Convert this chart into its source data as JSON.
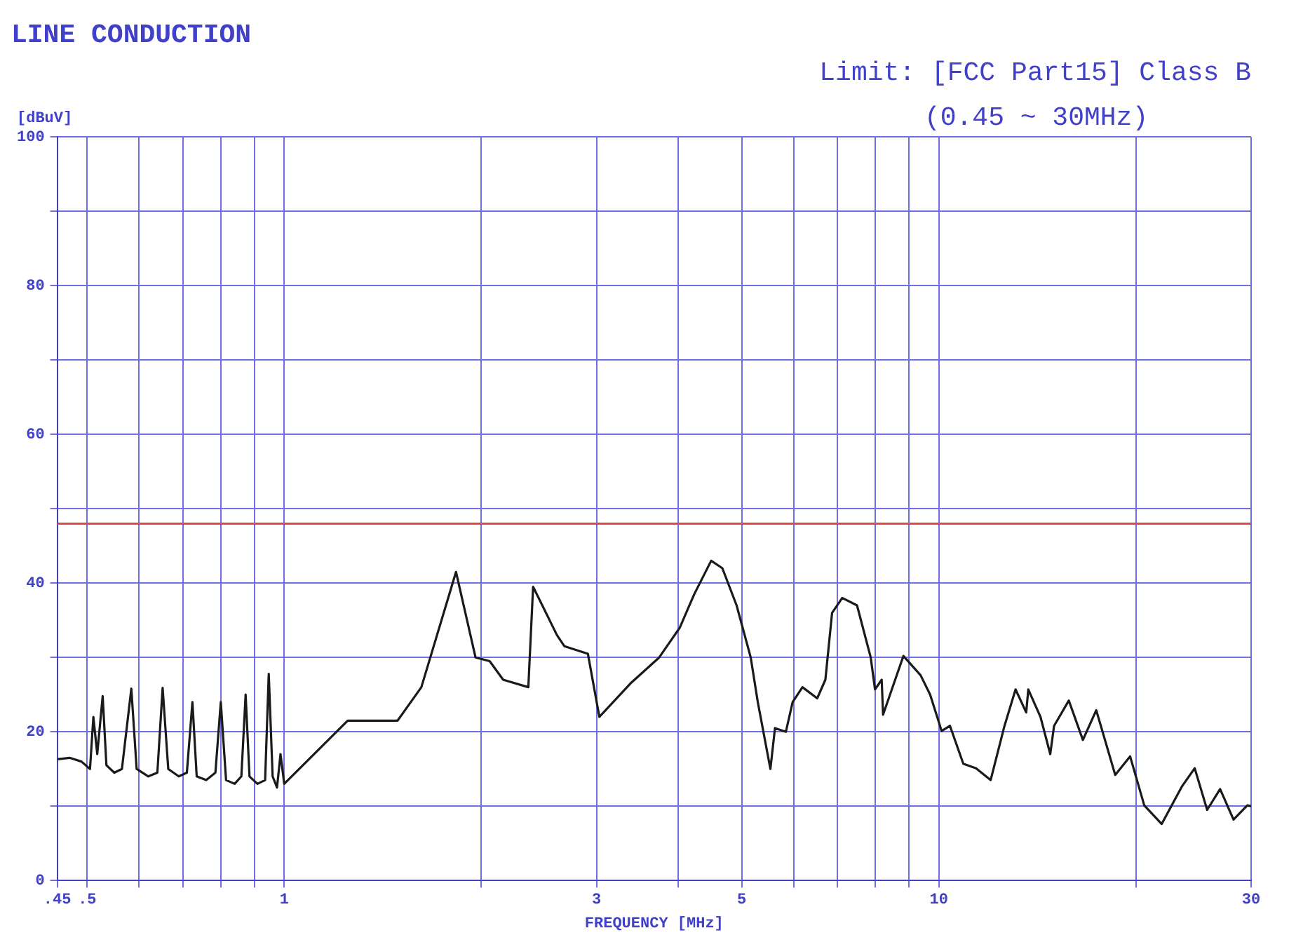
{
  "chart_data": {
    "type": "line",
    "title": "LINE CONDUCTION",
    "subtitle": "Limit: [FCC Part15] Class B",
    "annotations": [
      "(0.45 ~ 30MHz)"
    ],
    "xlabel": "FREQUENCY [MHz]",
    "ylabel": "[dBuV]",
    "log": "x",
    "xlim": [
      0.45,
      30
    ],
    "xticks": [
      {
        "value": 0.45,
        "label": ".45"
      },
      {
        "value": 0.5,
        "label": ".5"
      },
      {
        "value": 0.6,
        "label": null
      },
      {
        "value": 0.7,
        "label": null
      },
      {
        "value": 0.8,
        "label": null
      },
      {
        "value": 0.9,
        "label": null
      },
      1,
      {
        "value": 2,
        "label": null
      },
      3,
      {
        "value": 4,
        "label": null
      },
      5,
      {
        "value": 6,
        "label": null
      },
      {
        "value": 7,
        "label": null
      },
      {
        "value": 8,
        "label": null
      },
      {
        "value": 9,
        "label": null
      },
      10,
      {
        "value": 20,
        "label": null
      },
      30
    ],
    "ylim": [
      0,
      100
    ],
    "yticks": [
      0,
      {
        "value": 10,
        "label": null
      },
      20,
      {
        "value": 30,
        "label": null
      },
      40,
      {
        "value": 50,
        "label": null
      },
      60,
      {
        "value": 70,
        "label": null
      },
      80,
      {
        "value": 90,
        "label": null
      },
      100
    ],
    "grid": true,
    "ref_lines": [
      {
        "axis": "y",
        "value": 48,
        "color": "#e04848"
      }
    ],
    "series": [
      {
        "color": "#1a1a1a",
        "x": [
          0.45,
          0.47,
          0.49,
          0.505,
          0.511,
          0.518,
          0.528,
          0.535,
          0.55,
          0.565,
          0.584,
          0.595,
          0.62,
          0.64,
          0.652,
          0.665,
          0.69,
          0.71,
          0.724,
          0.735,
          0.76,
          0.785,
          0.8,
          0.815,
          0.84,
          0.86,
          0.873,
          0.885,
          0.91,
          0.935,
          0.947,
          0.96,
          0.975,
          0.987,
          1.0,
          1.25,
          1.49,
          1.62,
          1.83,
          1.96,
          2.06,
          2.16,
          2.36,
          2.4,
          2.61,
          2.68,
          2.91,
          3.03,
          3.38,
          3.74,
          4.02,
          4.23,
          4.49,
          4.67,
          4.91,
          5.16,
          5.29,
          5.53,
          5.62,
          5.84,
          5.98,
          6.19,
          6.52,
          6.71,
          6.87,
          7.12,
          7.5,
          7.87,
          7.99,
          8.18,
          8.22,
          8.83,
          9.38,
          9.7,
          10.1,
          10.4,
          10.9,
          11.4,
          12.0,
          12.6,
          13.1,
          13.6,
          13.7,
          14.3,
          14.8,
          15.0,
          15.8,
          16.6,
          17.4,
          18.6,
          19.6,
          20.6,
          21.9,
          23.5,
          24.6,
          25.7,
          26.9,
          28.2,
          29.6,
          30
        ],
        "values": [
          16.3,
          16.5,
          16,
          15,
          22,
          17,
          24.8,
          15.5,
          14.5,
          15,
          25.8,
          15,
          14,
          14.5,
          25.9,
          15,
          14,
          14.5,
          24,
          14,
          13.5,
          14.5,
          24,
          13.5,
          13,
          14,
          25,
          14,
          13,
          13.5,
          27.8,
          14,
          12.5,
          17,
          13,
          21.5,
          21.5,
          26,
          41.5,
          30,
          29.5,
          27,
          26,
          39.5,
          33,
          31.5,
          30.5,
          22,
          26.5,
          30,
          34,
          38.5,
          43,
          42,
          37,
          30,
          24,
          15,
          20.5,
          20,
          24,
          26,
          24.5,
          27,
          36,
          38,
          37,
          30,
          25.7,
          27,
          22.3,
          30.2,
          27.6,
          25,
          20.1,
          20.8,
          15.7,
          15.1,
          13.5,
          20.8,
          25.7,
          22.6,
          25.7,
          22,
          17,
          20.8,
          24.2,
          18.9,
          22.9,
          14.2,
          16.7,
          10.1,
          7.6,
          12.6,
          15.1,
          9.5,
          12.3,
          8.2,
          10.1,
          10
        ]
      }
    ]
  }
}
